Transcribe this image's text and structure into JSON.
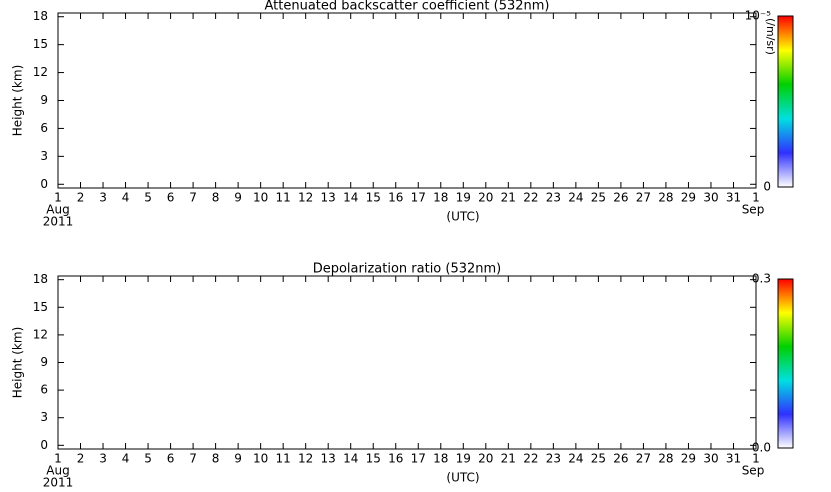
{
  "chart_data": [
    {
      "type": "heatmap",
      "title": "Attenuated backscatter coefficient (532nm)",
      "ylabel": "Height (km)",
      "xlabel": "(UTC)",
      "xlim": [
        1,
        32
      ],
      "xticks": [
        1,
        2,
        3,
        4,
        5,
        6,
        7,
        8,
        9,
        10,
        11,
        12,
        13,
        14,
        15,
        16,
        17,
        18,
        19,
        20,
        21,
        22,
        23,
        24,
        25,
        26,
        27,
        28,
        29,
        30,
        31,
        {
          "value": 32,
          "label": "1"
        }
      ],
      "ylim": [
        -0.4,
        18.4
      ],
      "yticks": [
        0,
        3,
        6,
        9,
        12,
        15,
        18
      ],
      "annotations": [
        "Aug",
        "2011",
        "Sep"
      ],
      "colorbar": {
        "label": "(/m/sr)",
        "lim": [
          0,
          1e-05
        ],
        "ticks": [
          0,
          {
            "value": 1e-05,
            "label": "10⁻⁵"
          }
        ],
        "colors": [
          "#ffffff",
          "#3030ff",
          "#00e0e0",
          "#00d000",
          "#ffff00",
          "#ff0000"
        ]
      }
    },
    {
      "type": "heatmap",
      "title": "Depolarization ratio (532nm)",
      "ylabel": "Height (km)",
      "xlabel": "(UTC)",
      "xlim": [
        1,
        32
      ],
      "xticks": [
        1,
        2,
        3,
        4,
        5,
        6,
        7,
        8,
        9,
        10,
        11,
        12,
        13,
        14,
        15,
        16,
        17,
        18,
        19,
        20,
        21,
        22,
        23,
        24,
        25,
        26,
        27,
        28,
        29,
        30,
        31,
        {
          "value": 32,
          "label": "1"
        }
      ],
      "ylim": [
        -0.4,
        18.4
      ],
      "yticks": [
        0,
        3,
        6,
        9,
        12,
        15,
        18
      ],
      "annotations": [
        "Aug",
        "2011",
        "Sep"
      ],
      "colorbar": {
        "lim": [
          0,
          0.3
        ],
        "ticks": [
          {
            "value": 0,
            "label": "0.0"
          },
          0.3
        ],
        "colors": [
          "#ffffff",
          "#3030ff",
          "#00e0e0",
          "#00d000",
          "#ffff00",
          "#ff0000"
        ]
      }
    }
  ]
}
